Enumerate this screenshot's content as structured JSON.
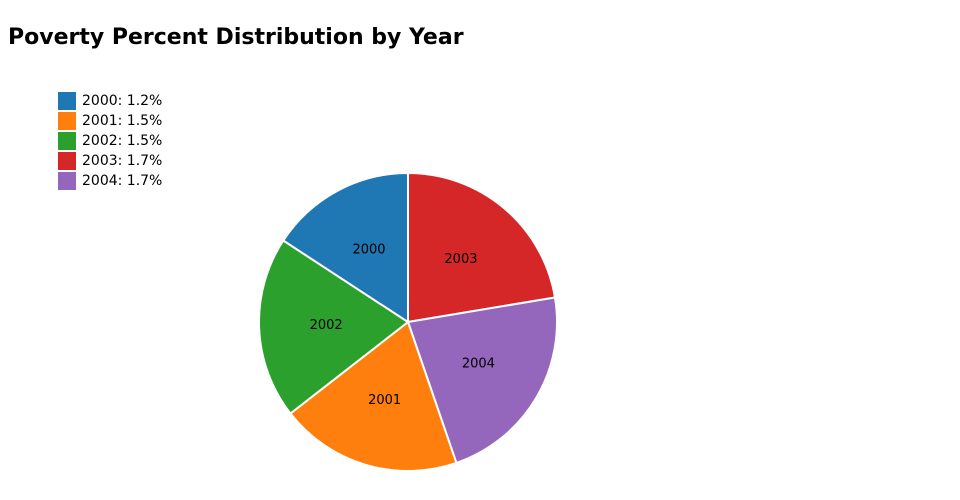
{
  "chart_data": {
    "type": "pie",
    "title": "Poverty Percent Distribution by Year",
    "categories": [
      "2000",
      "2001",
      "2002",
      "2003",
      "2004"
    ],
    "values": [
      1.2,
      1.5,
      1.5,
      1.7,
      1.7
    ],
    "legend_labels": [
      "2000: 1.2%",
      "2001: 1.5%",
      "2002: 1.5%",
      "2003: 1.7%",
      "2004: 1.7%"
    ],
    "colors": [
      "#1f77b4",
      "#ff7f0e",
      "#2ca02c",
      "#d62728",
      "#9467bd"
    ],
    "sort": "descending",
    "direction": "clockwise",
    "legend": "top-left"
  }
}
